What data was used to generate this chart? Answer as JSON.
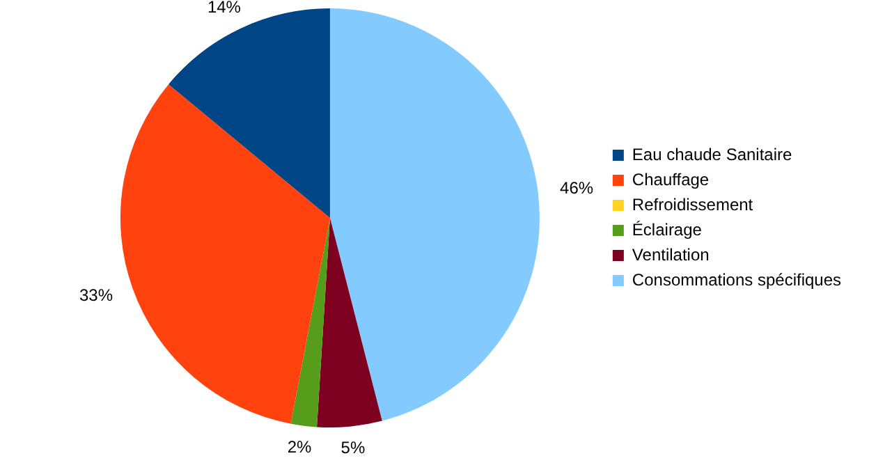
{
  "chart_data": {
    "type": "pie",
    "categories": [
      "Eau chaude Sanitaire",
      "Chauffage",
      "Refroidissement",
      "Éclairage",
      "Ventilation",
      "Consommations spécifiques"
    ],
    "values": [
      14,
      33,
      0,
      2,
      5,
      46
    ],
    "colors": [
      "#004586",
      "#ff420e",
      "#ffd320",
      "#579d1c",
      "#7e0021",
      "#83caff"
    ],
    "value_labels": [
      "14%",
      "33%",
      null,
      "2%",
      "5%",
      "46%"
    ],
    "legend": "right"
  }
}
